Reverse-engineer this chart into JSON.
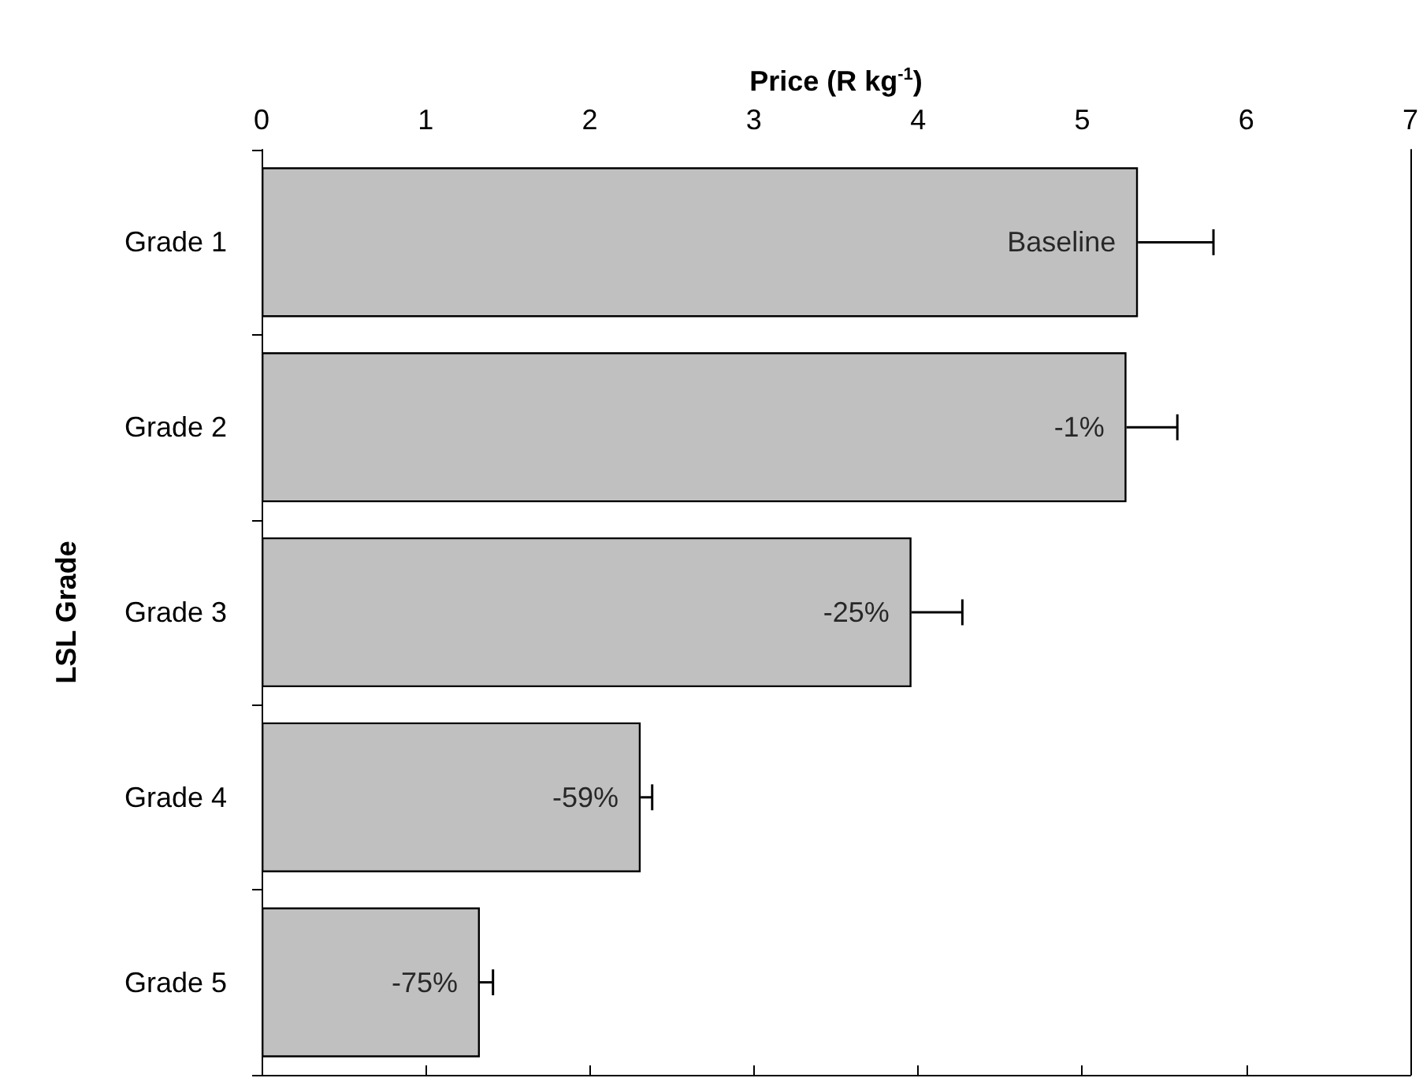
{
  "chart_data": {
    "type": "bar",
    "orientation": "horizontal",
    "xlabel": "Price (R kg$^{-1}$)",
    "ylabel": "LSL Grade",
    "categories": [
      "Grade 1",
      "Grade 2",
      "Grade 3",
      "Grade 4",
      "Grade 5"
    ],
    "values": [
      5.34,
      5.27,
      3.96,
      2.31,
      1.33
    ],
    "color": "#c0c0c0",
    "errors": [
      [
        5.34,
        5.8
      ],
      [
        5.27,
        5.58
      ],
      [
        3.96,
        4.27
      ],
      [
        2.31,
        2.38
      ],
      [
        1.33,
        1.41
      ]
    ],
    "annotations": [
      {
        "text": "Baseline",
        "x": 5.34,
        "y": "Grade 1"
      },
      {
        "text": "-1%",
        "x": 5.27,
        "y": "Grade 2"
      },
      {
        "text": "-25%",
        "x": 3.96,
        "y": "Grade 3"
      },
      {
        "text": "-59%",
        "x": 2.31,
        "y": "Grade 4"
      },
      {
        "text": "-75%",
        "x": 1.33,
        "y": "Grade 5"
      }
    ],
    "xlim": [
      0,
      7
    ],
    "xticks": [
      0,
      1,
      2,
      3,
      4,
      5,
      6,
      7
    ],
    "grid": false
  }
}
